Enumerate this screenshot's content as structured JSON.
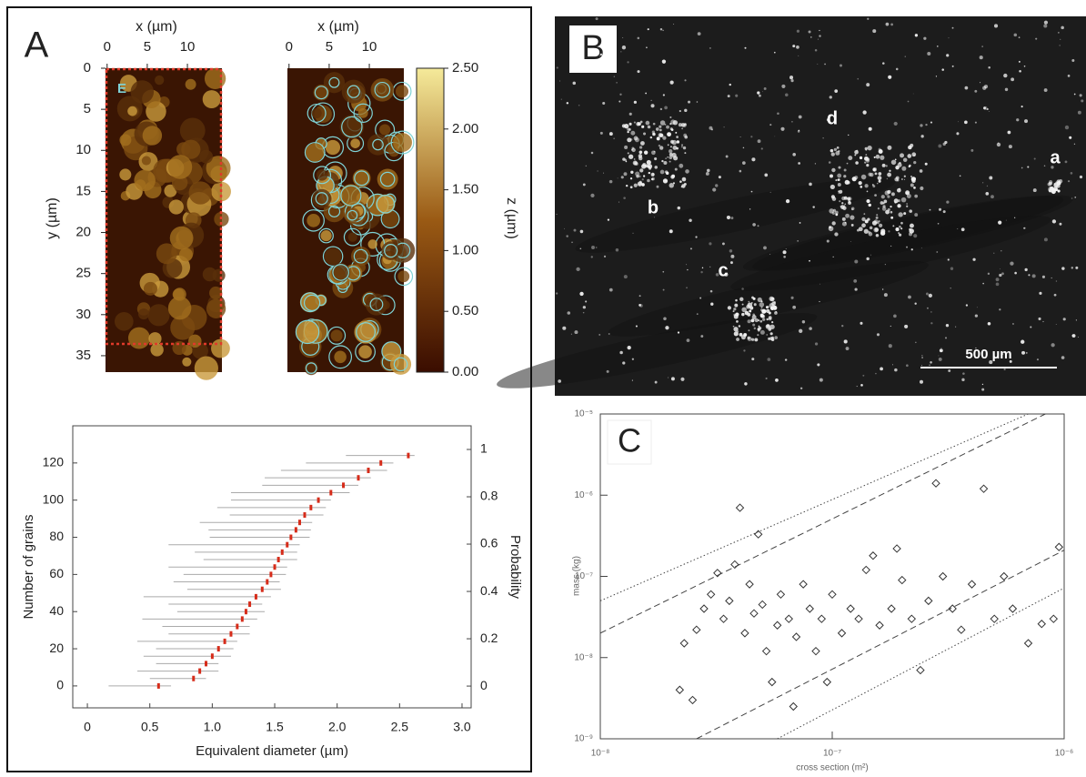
{
  "panel_labels": [
    "A",
    "B",
    "C"
  ],
  "photo": {
    "annotations": [
      "a",
      "b",
      "c",
      "d"
    ],
    "scale_bar": "500 µm"
  },
  "chart_data": [
    {
      "type": "image",
      "xlabel": "x (µm)",
      "ylabel": "y (µm)",
      "xlim": [
        -0.2,
        14.3
      ],
      "ylim": [
        0,
        37
      ],
      "xticks": [
        0,
        5,
        10
      ],
      "yticks": [
        0,
        5,
        10,
        15,
        20,
        25,
        30,
        35
      ],
      "annotation": "E"
    },
    {
      "type": "image",
      "xlabel": "x (µm)",
      "xlim": [
        -0.2,
        14.3
      ],
      "ylim": [
        0,
        37
      ],
      "xticks": [
        0,
        5,
        10
      ],
      "colorbar": {
        "label": "z (µm)",
        "lim": [
          0,
          2.5
        ],
        "colors": [
          "#3a0d00",
          "#f5ea9a"
        ],
        "ticks": [
          {
            "value": 0,
            "label": "0.00"
          },
          {
            "value": 0.5,
            "label": "0.50"
          },
          {
            "value": 1,
            "label": "1.00"
          },
          {
            "value": 1.5,
            "label": "1.50"
          },
          {
            "value": 2,
            "label": "2.00"
          },
          {
            "value": 2.5,
            "label": "2.50"
          }
        ]
      }
    },
    {
      "type": "errorbar",
      "xlabel": "Equivalent diameter (µm)",
      "ylabel": "Number of grains",
      "y2label": "Probability",
      "xlim": [
        -0.117,
        3.073
      ],
      "ylim": [
        -11.8,
        140
      ],
      "y2lim": [
        -0.092,
        1.1
      ],
      "xticks": [
        0,
        0.5,
        {
          "value": 1,
          "label": "1.0"
        },
        1.5,
        {
          "value": 2,
          "label": "2.0"
        },
        2.5,
        {
          "value": 3,
          "label": "3.0"
        }
      ],
      "yticks": [
        0,
        20,
        40,
        60,
        80,
        100,
        120
      ],
      "y2ticks": [
        0,
        0.2,
        0.4,
        0.6,
        0.8,
        1
      ],
      "color": "#d62c1a",
      "error_color": "#aaaaaa",
      "x": [
        0.57,
        0.85,
        0.9,
        0.95,
        1.0,
        1.05,
        1.1,
        1.15,
        1.2,
        1.24,
        1.27,
        1.3,
        1.35,
        1.4,
        1.44,
        1.47,
        1.5,
        1.53,
        1.56,
        1.6,
        1.63,
        1.67,
        1.7,
        1.74,
        1.79,
        1.85,
        1.95,
        2.05,
        2.17,
        2.25,
        2.35,
        2.57
      ],
      "values": [
        0,
        4,
        8,
        12,
        16,
        20,
        24,
        28,
        32,
        36,
        40,
        44,
        48,
        52,
        56,
        60,
        64,
        68,
        72,
        76,
        80,
        84,
        88,
        92,
        96,
        100,
        104,
        108,
        112,
        116,
        120,
        124
      ],
      "xerr_low": [
        0.4,
        0.35,
        0.5,
        0.4,
        0.55,
        0.5,
        0.7,
        0.5,
        0.6,
        0.8,
        0.55,
        0.65,
        0.9,
        0.6,
        0.75,
        0.7,
        0.85,
        0.6,
        0.7,
        0.95,
        0.65,
        0.7,
        0.8,
        0.6,
        0.75,
        0.7,
        0.8,
        0.65,
        0.75,
        0.7,
        0.6,
        0.5
      ],
      "xerr_high": [
        0.1,
        0.1,
        0.15,
        0.1,
        0.15,
        0.12,
        0.1,
        0.15,
        0.1,
        0.12,
        0.15,
        0.1,
        0.12,
        0.15,
        0.1,
        0.12,
        0.1,
        0.15,
        0.12,
        0.1,
        0.15,
        0.12,
        0.1,
        0.15,
        0.12,
        0.1,
        0.15,
        0.12,
        0.1,
        0.15,
        0.1,
        0.05
      ]
    },
    {
      "type": "scatter",
      "xlabel": "cross section (m²)",
      "ylabel": "mass (kg)",
      "log_x": true,
      "log_y": true,
      "xlim": [
        1e-08,
        1e-06
      ],
      "ylim": [
        1e-09,
        1e-05
      ],
      "color": "#333333",
      "xticks": [
        {
          "value": 1e-08,
          "label": "10⁻⁸"
        },
        {
          "value": 1e-07,
          "label": "10⁻⁷"
        },
        {
          "value": 1e-06,
          "label": "10⁻⁶"
        }
      ],
      "yticks": [
        {
          "value": 1e-09,
          "label": "10⁻⁹"
        },
        {
          "value": 1e-08,
          "label": "10⁻⁸"
        },
        {
          "value": 1e-07,
          "label": "10⁻⁷"
        },
        {
          "value": 1e-06,
          "label": "10⁻⁶"
        },
        {
          "value": 1e-05,
          "label": "10⁻⁵"
        }
      ],
      "x": [
        2.2e-08,
        2.5e-08,
        2.3e-08,
        2.6e-08,
        2.8e-08,
        3e-08,
        3.2e-08,
        3.4e-08,
        3.6e-08,
        3.8e-08,
        4e-08,
        4.2e-08,
        4.4e-08,
        4.6e-08,
        4.8e-08,
        5e-08,
        5.2e-08,
        5.5e-08,
        5.8e-08,
        6e-08,
        6.5e-08,
        6.8e-08,
        7e-08,
        7.5e-08,
        8e-08,
        8.5e-08,
        9e-08,
        9.5e-08,
        1e-07,
        1.1e-07,
        1.2e-07,
        1.3e-07,
        1.4e-07,
        1.5e-07,
        1.6e-07,
        1.8e-07,
        1.9e-07,
        2e-07,
        2.2e-07,
        2.4e-07,
        2.6e-07,
        2.8e-07,
        3e-07,
        3.3e-07,
        3.6e-07,
        4e-07,
        4.5e-07,
        5e-07,
        5.5e-07,
        6e-07,
        7e-07,
        8e-07,
        9e-07,
        9.5e-07
      ],
      "values": [
        4e-09,
        3e-09,
        1.5e-08,
        2.2e-08,
        4e-08,
        6e-08,
        1.1e-07,
        3e-08,
        5e-08,
        1.4e-07,
        7e-07,
        2e-08,
        8e-08,
        3.5e-08,
        3.3e-07,
        4.5e-08,
        1.2e-08,
        5e-09,
        2.5e-08,
        6e-08,
        3e-08,
        2.5e-09,
        1.8e-08,
        8e-08,
        4e-08,
        1.2e-08,
        3e-08,
        5e-09,
        6e-08,
        2e-08,
        4e-08,
        3e-08,
        1.2e-07,
        1.8e-07,
        2.5e-08,
        4e-08,
        2.2e-07,
        9e-08,
        3e-08,
        7e-09,
        5e-08,
        1.4e-06,
        1e-07,
        4e-08,
        2.2e-08,
        8e-08,
        1.2e-06,
        3e-08,
        1e-07,
        4e-08,
        1.5e-08,
        2.6e-08,
        3e-08,
        2.3e-07
      ],
      "lines": [
        {
          "style": "dotted",
          "x": [
            1e-08,
            7e-07
          ],
          "values": [
            5e-08,
            1e-05
          ]
        },
        {
          "style": "dashed",
          "x": [
            1e-08,
            8.3e-07
          ],
          "values": [
            2e-08,
            1e-05
          ]
        },
        {
          "style": "dashed",
          "x": [
            2.6e-08,
            1e-06
          ],
          "values": [
            1e-09,
            2.1e-07
          ]
        },
        {
          "style": "dotted",
          "x": [
            5.8e-08,
            1e-06
          ],
          "values": [
            1e-09,
            7.2e-08
          ]
        }
      ]
    }
  ]
}
